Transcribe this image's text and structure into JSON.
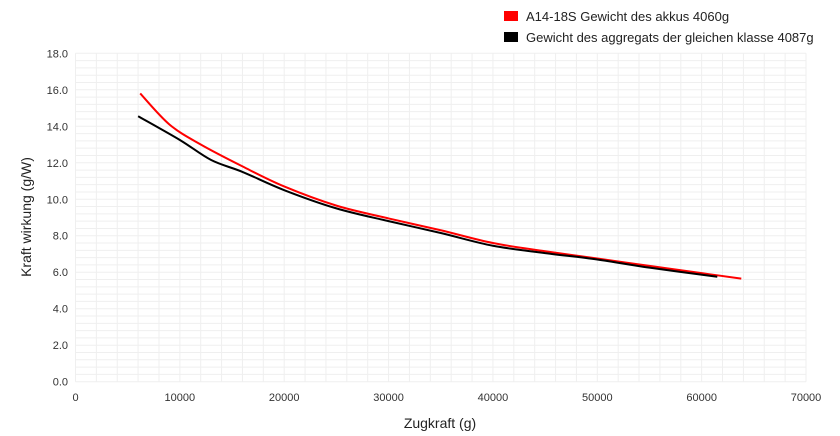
{
  "chart_data": {
    "type": "line",
    "xlabel": "Zugkraft (g)",
    "ylabel": "Kraft wirkung (g/W)",
    "xlim": [
      0,
      70000
    ],
    "ylim": [
      0,
      18
    ],
    "x_ticks": [
      "0",
      "10000",
      "20000",
      "30000",
      "40000",
      "50000",
      "60000",
      "70000"
    ],
    "y_ticks": [
      "0.0",
      "2.0",
      "4.0",
      "6.0",
      "8.0",
      "10.0",
      "12.0",
      "14.0",
      "16.0",
      "18.0"
    ],
    "grid": true,
    "legend_position": "top-right",
    "series": [
      {
        "name": "A14-18S Gewicht des akkus 4060g",
        "color": "#ff0000",
        "points": [
          [
            6200,
            15.8
          ],
          [
            9000,
            14.1
          ],
          [
            12000,
            13.0
          ],
          [
            16000,
            11.8
          ],
          [
            20000,
            10.7
          ],
          [
            25000,
            9.65
          ],
          [
            30000,
            8.95
          ],
          [
            35000,
            8.3
          ],
          [
            40000,
            7.6
          ],
          [
            45000,
            7.15
          ],
          [
            50000,
            6.75
          ],
          [
            55000,
            6.35
          ],
          [
            60000,
            5.95
          ],
          [
            63800,
            5.65
          ]
        ]
      },
      {
        "name": "Gewicht des aggregats der gleichen klasse 4087g",
        "color": "#000000",
        "points": [
          [
            6000,
            14.55
          ],
          [
            10000,
            13.25
          ],
          [
            13000,
            12.15
          ],
          [
            16000,
            11.5
          ],
          [
            20000,
            10.5
          ],
          [
            25000,
            9.5
          ],
          [
            30000,
            8.8
          ],
          [
            35000,
            8.15
          ],
          [
            40000,
            7.45
          ],
          [
            45000,
            7.05
          ],
          [
            50000,
            6.7
          ],
          [
            55000,
            6.25
          ],
          [
            61500,
            5.75
          ]
        ]
      }
    ]
  }
}
